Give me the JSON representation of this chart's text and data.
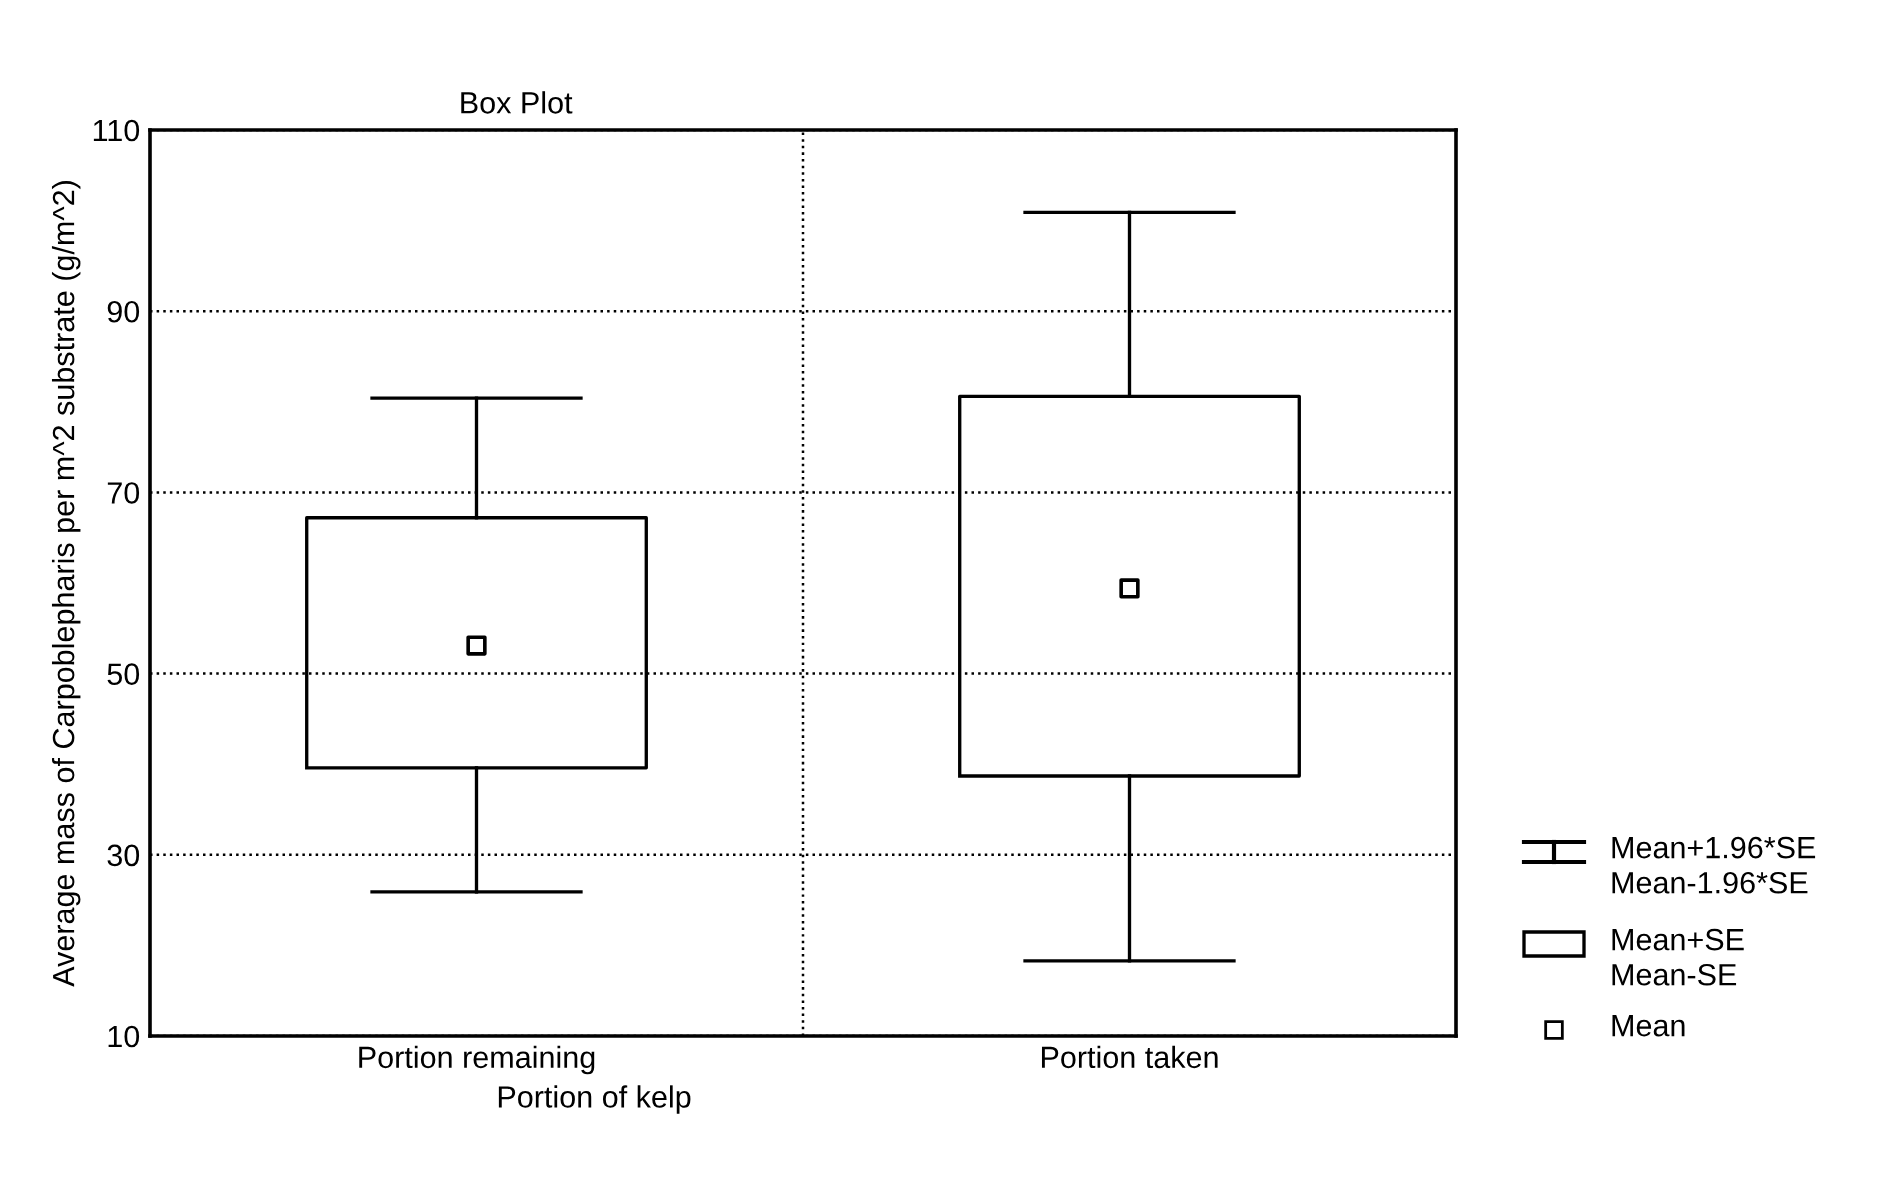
{
  "chart_data": {
    "type": "box",
    "title": "Box Plot",
    "xlabel": "Portion of kelp",
    "ylabel": "Average mass of Carpoblepharis per m^2 substrate (g/m^2)",
    "categories": [
      "Portion remaining",
      "Portion taken"
    ],
    "boxes": [
      {
        "low": 25.9,
        "q1": 39.6,
        "q3": 67.2,
        "high": 80.4,
        "mean": 53.1
      },
      {
        "low": 18.3,
        "q1": 38.7,
        "q3": 80.6,
        "high": 100.9,
        "mean": 59.4
      }
    ],
    "ylim": [
      10,
      110
    ],
    "yticks": [
      10,
      30,
      50,
      70,
      90,
      110
    ],
    "grid": true,
    "marker": "square",
    "annotations": [
      "Mean+1.96*SE\nMean-1.96*SE",
      "Mean+SE\nMean-SE",
      "Mean"
    ]
  }
}
